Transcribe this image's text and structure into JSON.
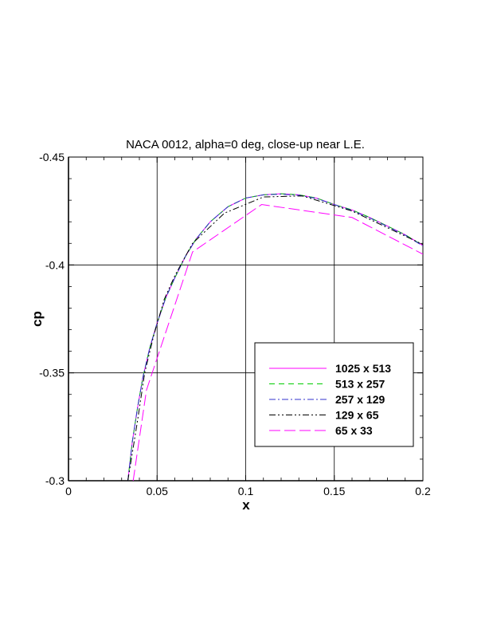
{
  "chart_data": {
    "type": "line",
    "title": "NACA 0012, alpha=0 deg, close-up near L.E.",
    "xlabel": "x",
    "ylabel": "cp",
    "xlim": [
      0,
      0.2
    ],
    "ylim": [
      -0.3,
      -0.45
    ],
    "y_axis_inverted": true,
    "grid": true,
    "legend_position": "lower-right",
    "x_ticks": [
      "0",
      "0.05",
      "0.1",
      "0.15",
      "0.2"
    ],
    "y_ticks": [
      "-0.3",
      "-0.35",
      "-0.4",
      "-0.45"
    ],
    "x_tick_values": [
      0,
      0.05,
      0.1,
      0.15,
      0.2
    ],
    "y_tick_values": [
      -0.3,
      -0.35,
      -0.4,
      -0.45
    ],
    "series": [
      {
        "name": "1025 x 513",
        "color": "#ff00ff",
        "dash": "solid",
        "x": [
          0.0335,
          0.036,
          0.039,
          0.042,
          0.046,
          0.05,
          0.055,
          0.06,
          0.066,
          0.072,
          0.08,
          0.09,
          0.1,
          0.11,
          0.12,
          0.13,
          0.14,
          0.15,
          0.16,
          0.17,
          0.18,
          0.19,
          0.2
        ],
        "y": [
          -0.3,
          -0.318,
          -0.334,
          -0.348,
          -0.362,
          -0.373,
          -0.385,
          -0.394,
          -0.404,
          -0.412,
          -0.42,
          -0.427,
          -0.431,
          -0.4325,
          -0.433,
          -0.4325,
          -0.431,
          -0.428,
          -0.4255,
          -0.422,
          -0.418,
          -0.414,
          -0.409
        ]
      },
      {
        "name": "513 x 257",
        "color": "#00cc00",
        "dash": "dashed",
        "x": [
          0.0335,
          0.036,
          0.039,
          0.042,
          0.046,
          0.05,
          0.055,
          0.06,
          0.066,
          0.072,
          0.08,
          0.09,
          0.1,
          0.11,
          0.12,
          0.13,
          0.14,
          0.15,
          0.16,
          0.17,
          0.18,
          0.19,
          0.2
        ],
        "y": [
          -0.3,
          -0.318,
          -0.334,
          -0.348,
          -0.362,
          -0.373,
          -0.385,
          -0.394,
          -0.404,
          -0.412,
          -0.42,
          -0.427,
          -0.431,
          -0.4325,
          -0.433,
          -0.4325,
          -0.431,
          -0.428,
          -0.4255,
          -0.422,
          -0.418,
          -0.414,
          -0.409
        ]
      },
      {
        "name": "257 x 129",
        "color": "#3333cc",
        "dash": "dashdot",
        "x": [
          0.0335,
          0.036,
          0.039,
          0.042,
          0.046,
          0.05,
          0.055,
          0.06,
          0.066,
          0.072,
          0.08,
          0.09,
          0.1,
          0.11,
          0.12,
          0.13,
          0.14,
          0.15,
          0.16,
          0.17,
          0.18,
          0.19,
          0.2
        ],
        "y": [
          -0.3,
          -0.318,
          -0.334,
          -0.348,
          -0.362,
          -0.373,
          -0.385,
          -0.394,
          -0.404,
          -0.412,
          -0.42,
          -0.427,
          -0.431,
          -0.4325,
          -0.4328,
          -0.4323,
          -0.4308,
          -0.428,
          -0.4252,
          -0.4218,
          -0.4178,
          -0.4138,
          -0.4088
        ]
      },
      {
        "name": "129 x 65",
        "color": "#000000",
        "dash": "dashdotdot",
        "x": [
          0.0335,
          0.039,
          0.043,
          0.048,
          0.054,
          0.06,
          0.07,
          0.088,
          0.11,
          0.132,
          0.16,
          0.2
        ],
        "y": [
          -0.3,
          -0.328,
          -0.35,
          -0.367,
          -0.384,
          -0.395,
          -0.41,
          -0.424,
          -0.4315,
          -0.432,
          -0.425,
          -0.4095
        ]
      },
      {
        "name": "65 x 33",
        "color": "#ff00ff",
        "dash": "longdash",
        "x": [
          0.0365,
          0.044,
          0.07,
          0.109,
          0.16,
          0.2
        ],
        "y": [
          -0.3,
          -0.342,
          -0.406,
          -0.428,
          -0.422,
          -0.405
        ]
      }
    ]
  }
}
